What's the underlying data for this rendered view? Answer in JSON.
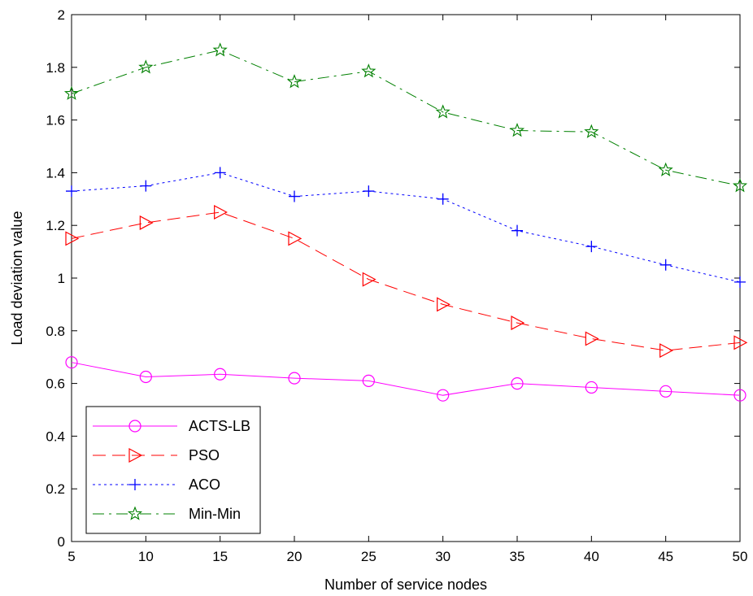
{
  "chart_data": {
    "type": "line",
    "title": "",
    "xlabel": "Number of service nodes",
    "ylabel": "Load deviation value",
    "x": [
      5,
      10,
      15,
      20,
      25,
      30,
      35,
      40,
      45,
      50
    ],
    "xlim": [
      5,
      50
    ],
    "ylim": [
      0,
      2
    ],
    "xticks": [
      "5",
      "10",
      "15",
      "20",
      "25",
      "30",
      "35",
      "40",
      "45",
      "50"
    ],
    "yticks": [
      "0",
      "0.2",
      "0.4",
      "0.6",
      "0.8",
      "1",
      "1.2",
      "1.4",
      "1.6",
      "1.8",
      "2"
    ],
    "grid": false,
    "legend_position": "bottom-left",
    "series": [
      {
        "name": "ACTS-LB",
        "color": "#ff00ff",
        "marker": "circle",
        "dash": "solid",
        "values": [
          0.68,
          0.625,
          0.635,
          0.62,
          0.61,
          0.555,
          0.6,
          0.585,
          0.57,
          0.555
        ]
      },
      {
        "name": "PSO",
        "color": "#ff0000",
        "marker": "triangle-right",
        "dash": "dashed",
        "values": [
          1.15,
          1.21,
          1.25,
          1.15,
          0.995,
          0.9,
          0.83,
          0.77,
          0.725,
          0.755
        ]
      },
      {
        "name": "ACO",
        "color": "#0000ff",
        "marker": "plus",
        "dash": "dotted",
        "values": [
          1.33,
          1.35,
          1.4,
          1.31,
          1.33,
          1.3,
          1.18,
          1.12,
          1.05,
          0.985
        ]
      },
      {
        "name": "Min-Min",
        "color": "#008000",
        "marker": "star",
        "dash": "dashdot",
        "values": [
          1.7,
          1.8,
          1.865,
          1.745,
          1.785,
          1.63,
          1.56,
          1.555,
          1.41,
          1.35
        ]
      }
    ]
  }
}
